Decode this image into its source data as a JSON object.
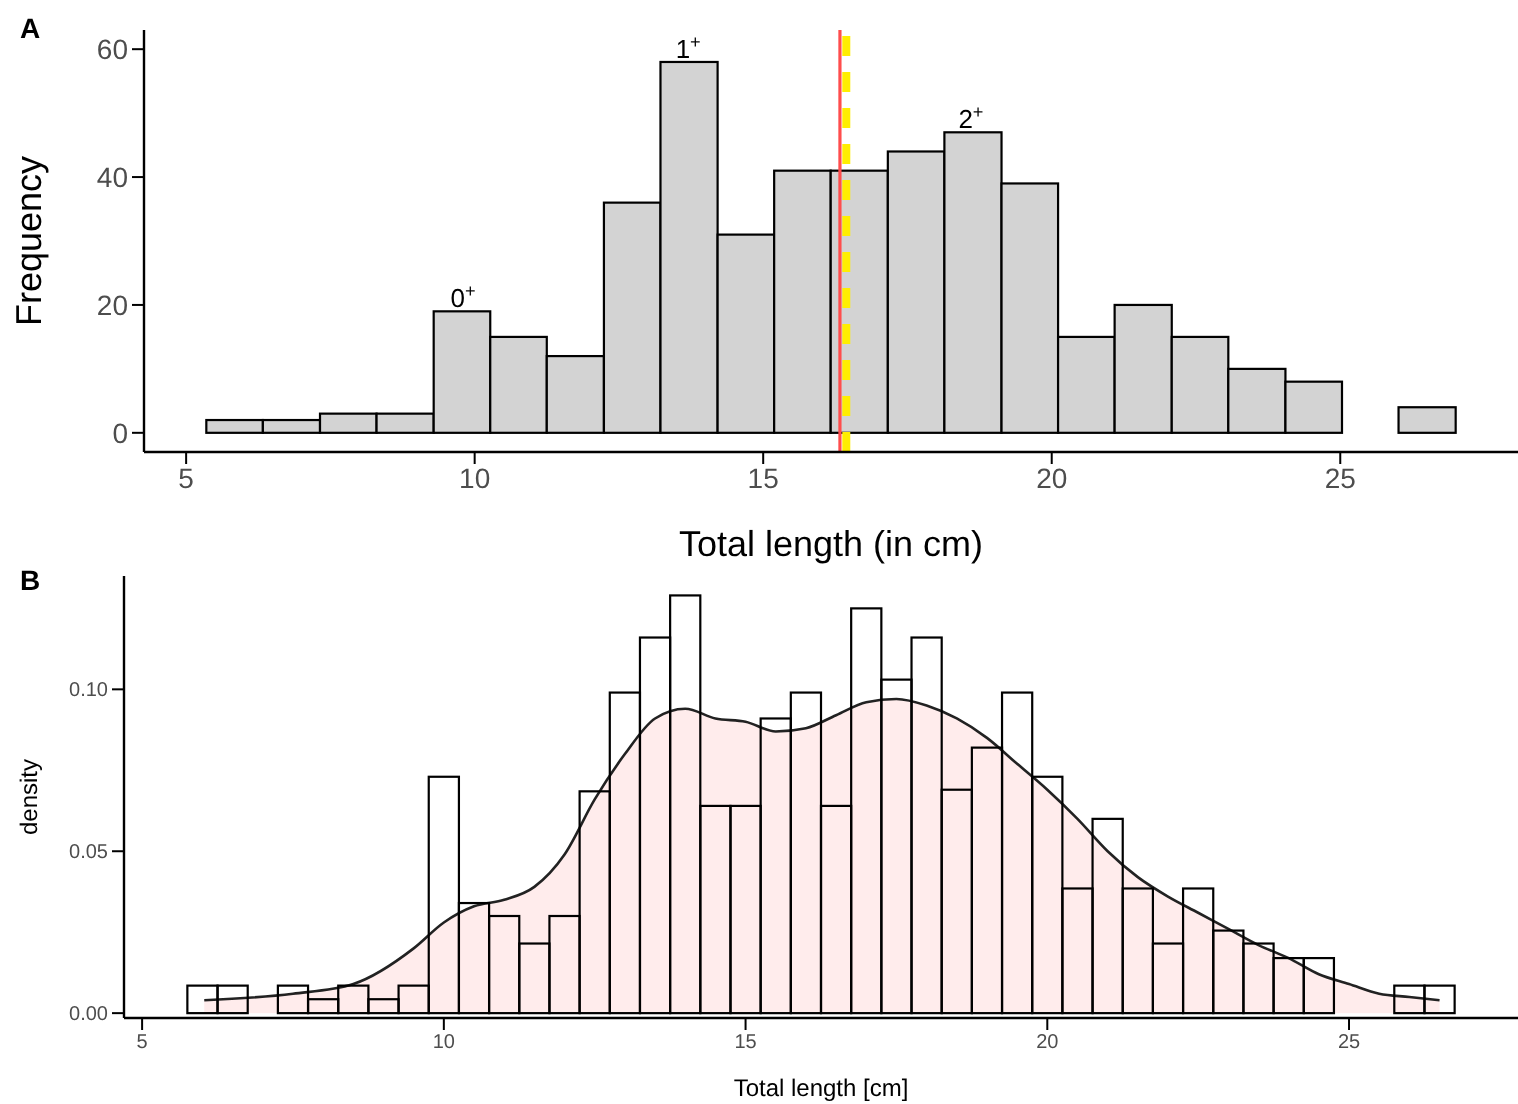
{
  "chart_data": [
    {
      "type": "histogram",
      "title": "A",
      "xlabel": "Total length (in cm)",
      "ylabel": "Frequency",
      "color": "#d3d3d3",
      "bins": [
        5.35,
        6.33,
        7.32,
        8.3,
        9.29,
        10.27,
        11.25,
        12.24,
        13.22,
        14.21,
        15.19,
        16.17,
        17.16,
        18.14,
        19.13,
        20.11,
        21.09,
        22.08,
        23.06,
        24.05,
        25.03,
        26.01,
        27.0
      ],
      "values": [
        2,
        2,
        3,
        3,
        19,
        15,
        12,
        36,
        58,
        31,
        41,
        41,
        44,
        47,
        39,
        15,
        20,
        15,
        10,
        8,
        0,
        4
      ],
      "xlim": [
        4.27,
        28.08
      ],
      "ylim": [
        -3,
        63
      ],
      "xticks": [
        5,
        10,
        15,
        20,
        25
      ],
      "yticks": [
        0,
        20,
        40,
        60
      ],
      "ref_lines": [
        {
          "axis": "x",
          "value": 16.33,
          "color": "#ff4d4d",
          "line_style": "solid"
        },
        {
          "axis": "x",
          "value": 16.44,
          "color": "#ffee00",
          "line_style": "dashed"
        }
      ],
      "annotations": [
        {
          "text": "0$^{+}$",
          "x": 9.8,
          "y": 19
        },
        {
          "text": "1$^{+}$",
          "x": 13.7,
          "y": 58
        },
        {
          "text": "2$^{+}$",
          "x": 18.6,
          "y": 47
        }
      ]
    },
    {
      "type": "histogram",
      "title": "B",
      "xlabel": "Total length [cm]",
      "ylabel": "density",
      "color": "#000000",
      "bins": [
        5.75,
        6.25,
        6.75,
        7.25,
        7.75,
        8.25,
        8.75,
        9.25,
        9.75,
        10.25,
        10.75,
        11.25,
        11.75,
        12.25,
        12.75,
        13.25,
        13.75,
        14.25,
        14.75,
        15.25,
        15.75,
        16.25,
        16.75,
        17.25,
        17.75,
        18.25,
        18.75,
        19.25,
        19.75,
        20.25,
        20.75,
        21.25,
        21.75,
        22.25,
        22.75,
        23.25,
        23.75,
        24.25,
        24.75,
        25.25,
        25.75,
        26.25,
        26.75
      ],
      "values": [
        0.0085,
        0.0085,
        null,
        0.0085,
        0.0043,
        0.0085,
        0.0043,
        0.0085,
        0.073,
        0.034,
        0.03,
        0.0215,
        0.03,
        0.0685,
        0.099,
        0.116,
        0.129,
        0.064,
        0.064,
        0.091,
        0.099,
        0.064,
        0.125,
        0.103,
        0.116,
        0.069,
        0.082,
        0.099,
        0.073,
        0.0385,
        0.06,
        0.0385,
        0.0215,
        0.0385,
        0.0255,
        0.0215,
        0.017,
        0.017,
        null,
        null,
        0.0085,
        0.0085
      ],
      "series": [
        {
          "type": "area",
          "color": "#ffe0e0",
          "x": [
            6.03,
            7.5,
            8.5,
            9.5,
            10,
            10.5,
            11,
            11.5,
            12,
            12.5,
            13,
            13.5,
            14,
            14.5,
            15,
            15.5,
            16,
            16.5,
            17,
            17.5,
            18,
            18.5,
            19,
            19.5,
            20,
            20.5,
            21,
            21.5,
            22,
            22.5,
            23,
            23.5,
            24,
            24.5,
            25,
            25.5,
            26,
            26.5
          ],
          "values": [
            0.004,
            0.006,
            0.009,
            0.02,
            0.028,
            0.033,
            0.035,
            0.039,
            0.049,
            0.066,
            0.08,
            0.091,
            0.094,
            0.091,
            0.09,
            0.087,
            0.088,
            0.092,
            0.096,
            0.097,
            0.095,
            0.091,
            0.085,
            0.077,
            0.069,
            0.06,
            0.05,
            0.042,
            0.036,
            0.031,
            0.026,
            0.021,
            0.017,
            0.012,
            0.009,
            0.006,
            0.005,
            0.004
          ]
        }
      ],
      "xlim": [
        4.7,
        27.8
      ],
      "ylim": [
        -0.0015,
        0.135
      ],
      "xticks": [
        5,
        10,
        15,
        20,
        25
      ],
      "yticks": [
        {
          "value": 0,
          "label": "0.00"
        },
        {
          "value": 0.05,
          "label": "0.05"
        },
        {
          "value": 0.1,
          "label": "0.10"
        }
      ]
    }
  ]
}
